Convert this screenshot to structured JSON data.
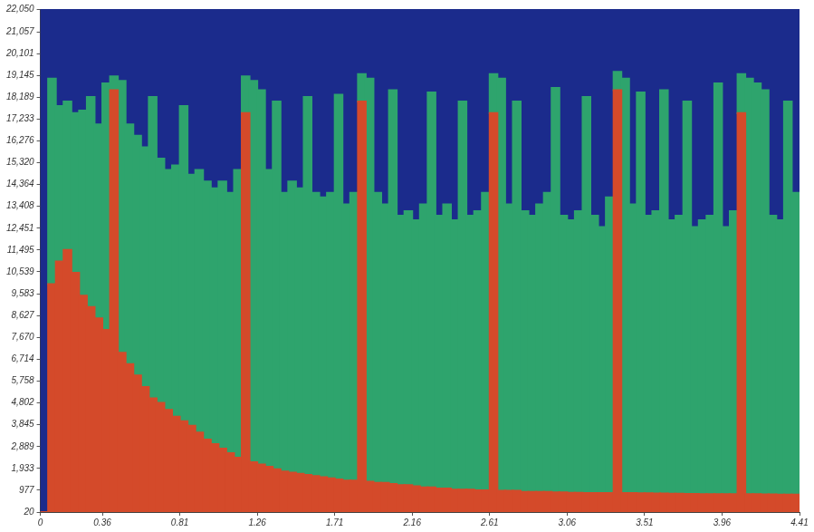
{
  "chart_data": {
    "type": "spectrogram",
    "color": "#1b2b8c",
    "grid": false,
    "bins": [
      0,
      0.045,
      0.09,
      0.135,
      0.18,
      0.225,
      0.27,
      0.315,
      0.36,
      0.405,
      0.45,
      0.495,
      0.54,
      0.585,
      0.63,
      0.675,
      0.72,
      0.765,
      0.81,
      0.855,
      0.9,
      0.945,
      0.99,
      1.035,
      1.08,
      1.125,
      1.17,
      1.215,
      1.26,
      1.305,
      1.35,
      1.395,
      1.44,
      1.485,
      1.53,
      1.575,
      1.62,
      1.665,
      1.71,
      1.755,
      1.8,
      1.845,
      1.89,
      1.935,
      1.98,
      2.025,
      2.07,
      2.115,
      2.16,
      2.205,
      2.25,
      2.295,
      2.34,
      2.385,
      2.43,
      2.475,
      2.52,
      2.565,
      2.61,
      2.655,
      2.7,
      2.745,
      2.79,
      2.835,
      2.88,
      2.925,
      2.97,
      3.015,
      3.06,
      3.105,
      3.15,
      3.195,
      3.24,
      3.285,
      3.33,
      3.375,
      3.42,
      3.465,
      3.51,
      3.555,
      3.6,
      3.645,
      3.69,
      3.735,
      3.78,
      3.825,
      3.87,
      3.915,
      3.96,
      4.005,
      4.05,
      4.095,
      4.14,
      4.185,
      4.23,
      4.275,
      4.32,
      4.365,
      4.41
    ],
    "series": [
      {
        "color": "#d44a2a",
        "values": [
          20,
          10000,
          11000,
          11500,
          10500,
          9500,
          9000,
          8500,
          8000,
          18500,
          7000,
          6500,
          6000,
          5500,
          5000,
          4800,
          4500,
          4200,
          4000,
          3800,
          3500,
          3200,
          3000,
          2800,
          2600,
          2400,
          17500,
          2200,
          2100,
          2000,
          1900,
          1800,
          1750,
          1700,
          1650,
          1600,
          1550,
          1500,
          1450,
          1400,
          1400,
          18000,
          1350,
          1300,
          1300,
          1250,
          1200,
          1200,
          1150,
          1100,
          1100,
          1050,
          1050,
          1000,
          1000,
          1000,
          977,
          977,
          17500,
          950,
          950,
          950,
          900,
          900,
          900,
          900,
          880,
          880,
          860,
          860,
          850,
          850,
          850,
          850,
          18500,
          850,
          850,
          840,
          840,
          830,
          830,
          820,
          820,
          810,
          810,
          800,
          800,
          800,
          800,
          800,
          17500,
          800,
          800,
          790,
          790,
          780,
          780,
          780
        ]
      },
      {
        "color": "#2ea46d",
        "values": [
          20,
          19000,
          17800,
          18000,
          17500,
          17600,
          18200,
          17000,
          18800,
          19100,
          18900,
          17000,
          16500,
          16000,
          18200,
          15500,
          15000,
          15200,
          17800,
          14800,
          15000,
          14500,
          14200,
          14500,
          14000,
          15000,
          19100,
          18900,
          18500,
          15000,
          18000,
          14000,
          14500,
          14200,
          18200,
          14000,
          13800,
          14000,
          18300,
          13500,
          14000,
          19200,
          19000,
          14000,
          13500,
          18500,
          13000,
          13200,
          12800,
          13500,
          18400,
          13000,
          13500,
          12800,
          18000,
          13000,
          13200,
          14000,
          19200,
          19000,
          13500,
          18000,
          13200,
          13000,
          13500,
          14000,
          18600,
          13000,
          12800,
          13200,
          18200,
          13000,
          12500,
          13800,
          19300,
          19000,
          13500,
          18400,
          13000,
          13200,
          18500,
          12800,
          13000,
          18000,
          12500,
          12800,
          13000,
          18800,
          12500,
          13200,
          19200,
          19000,
          18800,
          18500,
          13000,
          12800,
          18000,
          14000
        ]
      }
    ],
    "xlim": [
      0,
      4.41
    ],
    "xticks": [
      0,
      0.36,
      0.81,
      1.26,
      1.71,
      2.16,
      2.61,
      3.06,
      3.51,
      3.96,
      4.41
    ],
    "ylim": [
      20,
      22050
    ],
    "yticks": [
      20,
      977,
      {
        "value": 1933,
        "label": "1,933"
      },
      {
        "value": 2889,
        "label": "2,889"
      },
      {
        "value": 3845,
        "label": "3,845"
      },
      {
        "value": 4802,
        "label": "4,802"
      },
      {
        "value": 5758,
        "label": "5,758"
      },
      {
        "value": 6714,
        "label": "6,714"
      },
      {
        "value": 7670,
        "label": "7,670"
      },
      {
        "value": 8627,
        "label": "8,627"
      },
      {
        "value": 9583,
        "label": "9,583"
      },
      {
        "value": 10539,
        "label": "10,539"
      },
      {
        "value": 11495,
        "label": "11,495"
      },
      {
        "value": 12451,
        "label": "12,451"
      },
      {
        "value": 13408,
        "label": "13,408"
      },
      {
        "value": 14364,
        "label": "14,364"
      },
      {
        "value": 15320,
        "label": "15,320"
      },
      {
        "value": 16276,
        "label": "16,276"
      },
      {
        "value": 17233,
        "label": "17,233"
      },
      {
        "value": 18189,
        "label": "18,189"
      },
      {
        "value": 19145,
        "label": "19,145"
      },
      {
        "value": 20101,
        "label": "20,101"
      },
      {
        "value": 21057,
        "label": "21,057"
      },
      {
        "value": 22050,
        "label": "22,050"
      }
    ]
  }
}
